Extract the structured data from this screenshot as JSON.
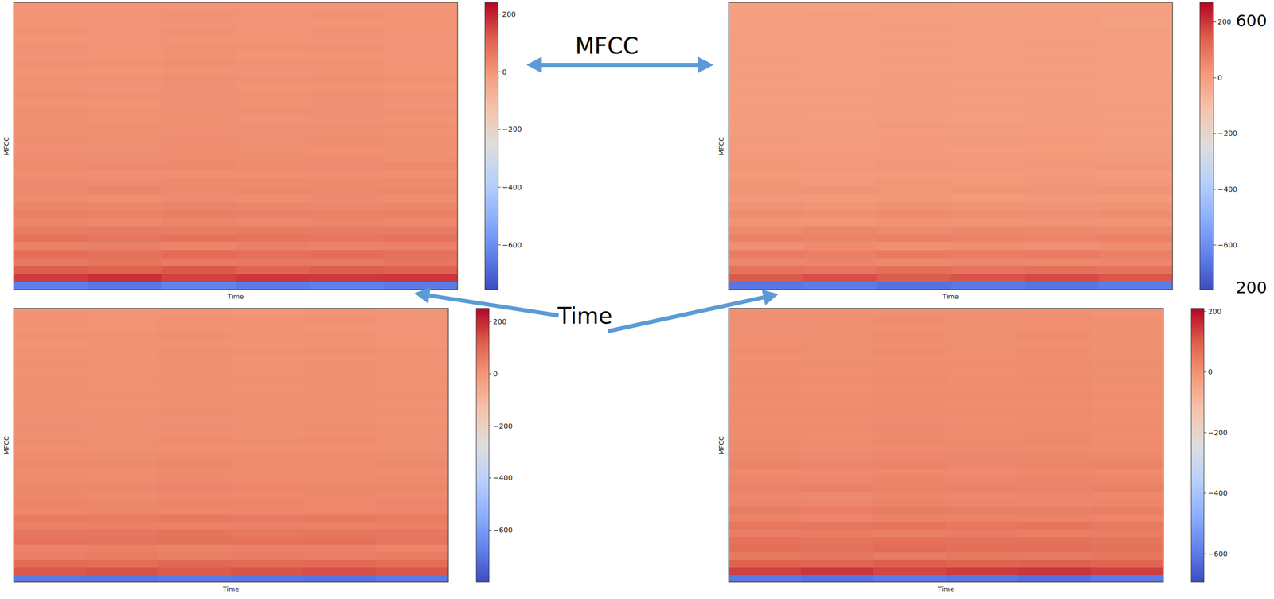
{
  "chart_data": [
    {
      "type": "heatmap",
      "xlabel": "Time",
      "ylabel": "MFCC",
      "tick_labels": false,
      "zlim": [
        -755,
        240
      ],
      "zticks": [
        200,
        0,
        {
          "value": -200,
          "label": "−200"
        },
        {
          "value": -400,
          "label": "−400"
        },
        {
          "value": -600,
          "label": "−600"
        }
      ],
      "z": [
        [
          -640,
          -655,
          -630,
          -648,
          -636,
          -650
        ],
        [
          165,
          180,
          158,
          172,
          168,
          175
        ],
        [
          118,
          110,
          125,
          105,
          120,
          112
        ],
        [
          62,
          70,
          58,
          66,
          60,
          68
        ],
        [
          85,
          78,
          90,
          82,
          88,
          80
        ],
        [
          42,
          48,
          38,
          45,
          40,
          46
        ],
        [
          72,
          68,
          75,
          70,
          66,
          74
        ],
        [
          55,
          60,
          52,
          58,
          54,
          57
        ],
        [
          32,
          28,
          35,
          30,
          34,
          29
        ],
        [
          48,
          44,
          50,
          46,
          42,
          47
        ],
        [
          36,
          32,
          38,
          34,
          30,
          35
        ],
        [
          22,
          18,
          25,
          20,
          24,
          19
        ],
        [
          30,
          34,
          28,
          32,
          29,
          33
        ],
        [
          25,
          22,
          27,
          24,
          26,
          23
        ],
        [
          16,
          14,
          18,
          15,
          17,
          13
        ],
        [
          26,
          24,
          28,
          22,
          25,
          27
        ],
        [
          20,
          18,
          22,
          19,
          21,
          17
        ],
        [
          14,
          12,
          16,
          13,
          15,
          11
        ],
        [
          18,
          16,
          20,
          17,
          19,
          15
        ],
        [
          12,
          10,
          14,
          11,
          13,
          9
        ],
        [
          15,
          13,
          17,
          14,
          16,
          12
        ],
        [
          10,
          8,
          12,
          9,
          11,
          7
        ],
        [
          13,
          11,
          15,
          12,
          14,
          10
        ],
        [
          9,
          7,
          11,
          8,
          10,
          6
        ],
        [
          12,
          10,
          14,
          11,
          13,
          9
        ],
        [
          8,
          6,
          10,
          7,
          9,
          5
        ],
        [
          11,
          9,
          13,
          10,
          12,
          8
        ],
        [
          7,
          5,
          9,
          6,
          8,
          4
        ],
        [
          10,
          8,
          12,
          9,
          11,
          7
        ],
        [
          6,
          4,
          8,
          5,
          7,
          3
        ],
        [
          9,
          7,
          11,
          8,
          10,
          6
        ],
        [
          5,
          3,
          7,
          4,
          6,
          2
        ],
        [
          8,
          6,
          10,
          7,
          9,
          5
        ],
        [
          4,
          2,
          6,
          3,
          5,
          1
        ],
        [
          7,
          5,
          9,
          6,
          8,
          4
        ],
        [
          3,
          1,
          5,
          2,
          4,
          0
        ]
      ]
    },
    {
      "type": "heatmap",
      "xlabel": "Time",
      "ylabel": "MFCC",
      "tick_labels": false,
      "zlim": [
        -760,
        270
      ],
      "zticks": [
        200,
        0,
        {
          "value": -200,
          "label": "−200"
        },
        {
          "value": -400,
          "label": "−400"
        },
        {
          "value": -600,
          "label": "−600"
        }
      ],
      "z": [
        [
          -660,
          -645,
          -670,
          -652,
          -665,
          -648
        ],
        [
          150,
          165,
          145,
          158,
          170,
          155
        ],
        [
          100,
          92,
          108,
          96,
          104,
          98
        ],
        [
          55,
          62,
          50,
          58,
          52,
          60
        ],
        [
          78,
          72,
          84,
          75,
          80,
          70
        ],
        [
          38,
          44,
          34,
          40,
          36,
          42
        ],
        [
          66,
          62,
          70,
          64,
          60,
          68
        ],
        [
          48,
          54,
          46,
          52,
          50,
          45
        ],
        [
          26,
          22,
          30,
          24,
          28,
          23
        ],
        [
          42,
          38,
          45,
          40,
          36,
          41
        ],
        [
          30,
          26,
          32,
          28,
          25,
          29
        ],
        [
          16,
          12,
          19,
          14,
          18,
          13
        ],
        [
          24,
          28,
          22,
          26,
          23,
          27
        ],
        [
          19,
          16,
          21,
          18,
          20,
          17
        ],
        [
          10,
          8,
          12,
          9,
          11,
          7
        ],
        [
          20,
          18,
          22,
          16,
          19,
          21
        ],
        [
          14,
          12,
          16,
          13,
          15,
          11
        ],
        [
          8,
          6,
          10,
          7,
          9,
          5
        ],
        [
          12,
          10,
          14,
          11,
          13,
          9
        ],
        [
          6,
          4,
          8,
          5,
          7,
          3
        ],
        [
          9,
          7,
          11,
          8,
          10,
          6
        ],
        [
          4,
          2,
          6,
          3,
          5,
          1
        ],
        [
          7,
          5,
          9,
          6,
          8,
          4
        ],
        [
          3,
          1,
          5,
          2,
          4,
          0
        ],
        [
          6,
          4,
          8,
          5,
          7,
          3
        ],
        [
          2,
          0,
          4,
          1,
          3,
          -1
        ],
        [
          5,
          3,
          7,
          4,
          6,
          2
        ],
        [
          1,
          -1,
          3,
          0,
          2,
          -2
        ],
        [
          4,
          2,
          6,
          3,
          5,
          1
        ],
        [
          0,
          -2,
          2,
          -1,
          1,
          -3
        ],
        [
          3,
          1,
          5,
          2,
          4,
          0
        ],
        [
          -1,
          -3,
          1,
          -2,
          0,
          -4
        ],
        [
          2,
          0,
          4,
          1,
          3,
          -1
        ],
        [
          -2,
          -4,
          0,
          -3,
          -1,
          -5
        ],
        [
          1,
          -1,
          3,
          0,
          2,
          -2
        ],
        [
          -3,
          -5,
          -1,
          -4,
          -2,
          -6
        ]
      ]
    },
    {
      "type": "heatmap",
      "xlabel": "Time",
      "ylabel": "MFCC",
      "tick_labels": false,
      "zlim": [
        -800,
        251
      ],
      "zticks": [
        200,
        0,
        {
          "value": -200,
          "label": "−200"
        },
        {
          "value": -400,
          "label": "−400"
        },
        {
          "value": -600,
          "label": "−600"
        }
      ],
      "z": [
        [
          -690,
          -700,
          -685,
          -695,
          -705,
          -688
        ],
        [
          130,
          140,
          125,
          135,
          145,
          132
        ],
        [
          95,
          88,
          100,
          92,
          98,
          90
        ],
        [
          50,
          56,
          46,
          52,
          48,
          55
        ],
        [
          40,
          45,
          38,
          42,
          44,
          39
        ],
        [
          78,
          74,
          82,
          76,
          80,
          72
        ],
        [
          70,
          66,
          74,
          68,
          72,
          65
        ],
        [
          45,
          48,
          42,
          46,
          44,
          47
        ],
        [
          60,
          56,
          64,
          58,
          62,
          55
        ],
        [
          30,
          34,
          28,
          32,
          29,
          33
        ],
        [
          36,
          32,
          38,
          34,
          30,
          35
        ],
        [
          28,
          24,
          30,
          26,
          29,
          25
        ],
        [
          32,
          30,
          35,
          33,
          31,
          34
        ],
        [
          24,
          21,
          26,
          23,
          25,
          22
        ],
        [
          20,
          18,
          22,
          19,
          21,
          17
        ],
        [
          26,
          24,
          28,
          22,
          25,
          27
        ],
        [
          20,
          18,
          22,
          19,
          21,
          17
        ],
        [
          14,
          12,
          16,
          13,
          15,
          11
        ],
        [
          18,
          16,
          20,
          17,
          19,
          15
        ],
        [
          12,
          10,
          14,
          11,
          13,
          9
        ],
        [
          15,
          13,
          17,
          14,
          16,
          12
        ],
        [
          10,
          8,
          12,
          9,
          11,
          7
        ],
        [
          13,
          11,
          15,
          12,
          14,
          10
        ],
        [
          9,
          7,
          11,
          8,
          10,
          6
        ],
        [
          12,
          10,
          14,
          11,
          13,
          9
        ],
        [
          8,
          6,
          10,
          7,
          9,
          5
        ],
        [
          11,
          9,
          13,
          10,
          12,
          8
        ],
        [
          7,
          5,
          9,
          6,
          8,
          4
        ],
        [
          10,
          8,
          12,
          9,
          11,
          7
        ],
        [
          6,
          4,
          8,
          5,
          7,
          3
        ],
        [
          9,
          7,
          11,
          8,
          10,
          6
        ],
        [
          5,
          3,
          7,
          4,
          6,
          2
        ],
        [
          8,
          6,
          10,
          7,
          9,
          5
        ],
        [
          4,
          2,
          6,
          3,
          5,
          1
        ],
        [
          7,
          5,
          9,
          6,
          8,
          4
        ],
        [
          3,
          1,
          5,
          2,
          4,
          0
        ]
      ]
    },
    {
      "type": "heatmap",
      "xlabel": "Time",
      "ylabel": "MFCC",
      "tick_labels": false,
      "zlim": [
        -694,
        210
      ],
      "zticks": [
        200,
        0,
        {
          "value": -200,
          "label": "−200"
        },
        {
          "value": -400,
          "label": "−400"
        },
        {
          "value": -600,
          "label": "−600"
        }
      ],
      "z": [
        [
          -600,
          -612,
          -595,
          -605,
          -618,
          -598
        ],
        [
          135,
          148,
          130,
          142,
          150,
          138
        ],
        [
          92,
          86,
          98,
          90,
          95,
          88
        ],
        [
          48,
          54,
          44,
          50,
          46,
          52
        ],
        [
          70,
          66,
          75,
          68,
          72,
          64
        ],
        [
          62,
          58,
          66,
          60,
          64,
          57
        ],
        [
          38,
          42,
          35,
          40,
          37,
          41
        ],
        [
          55,
          50,
          58,
          52,
          56,
          49
        ],
        [
          28,
          24,
          30,
          26,
          29,
          25
        ],
        [
          40,
          36,
          42,
          38,
          35,
          39
        ],
        [
          26,
          22,
          28,
          24,
          21,
          25
        ],
        [
          22,
          18,
          25,
          20,
          24,
          19
        ],
        [
          30,
          34,
          28,
          32,
          29,
          33
        ],
        [
          25,
          22,
          27,
          24,
          26,
          23
        ],
        [
          16,
          14,
          18,
          15,
          17,
          13
        ],
        [
          26,
          24,
          28,
          22,
          25,
          27
        ],
        [
          20,
          18,
          22,
          19,
          21,
          17
        ],
        [
          14,
          12,
          16,
          13,
          15,
          11
        ],
        [
          18,
          16,
          20,
          17,
          19,
          15
        ],
        [
          12,
          10,
          14,
          11,
          13,
          9
        ],
        [
          15,
          13,
          17,
          14,
          16,
          12
        ],
        [
          10,
          8,
          12,
          9,
          11,
          7
        ],
        [
          13,
          11,
          15,
          12,
          14,
          10
        ],
        [
          9,
          7,
          11,
          8,
          10,
          6
        ],
        [
          12,
          10,
          14,
          11,
          13,
          9
        ],
        [
          8,
          6,
          10,
          7,
          9,
          5
        ],
        [
          11,
          9,
          13,
          10,
          12,
          8
        ],
        [
          7,
          5,
          9,
          6,
          8,
          4
        ],
        [
          10,
          8,
          12,
          9,
          11,
          7
        ],
        [
          6,
          4,
          8,
          5,
          7,
          3
        ],
        [
          9,
          7,
          11,
          8,
          10,
          6
        ],
        [
          5,
          3,
          7,
          4,
          6,
          2
        ],
        [
          8,
          6,
          10,
          7,
          9,
          5
        ],
        [
          4,
          2,
          6,
          3,
          5,
          1
        ],
        [
          7,
          5,
          9,
          6,
          8,
          4
        ],
        [
          3,
          1,
          5,
          2,
          4,
          0
        ]
      ]
    }
  ],
  "annotations": [
    {
      "text": "MFCC"
    },
    {
      "text": "Time"
    },
    {
      "text": "600"
    },
    {
      "text": "200"
    }
  ]
}
